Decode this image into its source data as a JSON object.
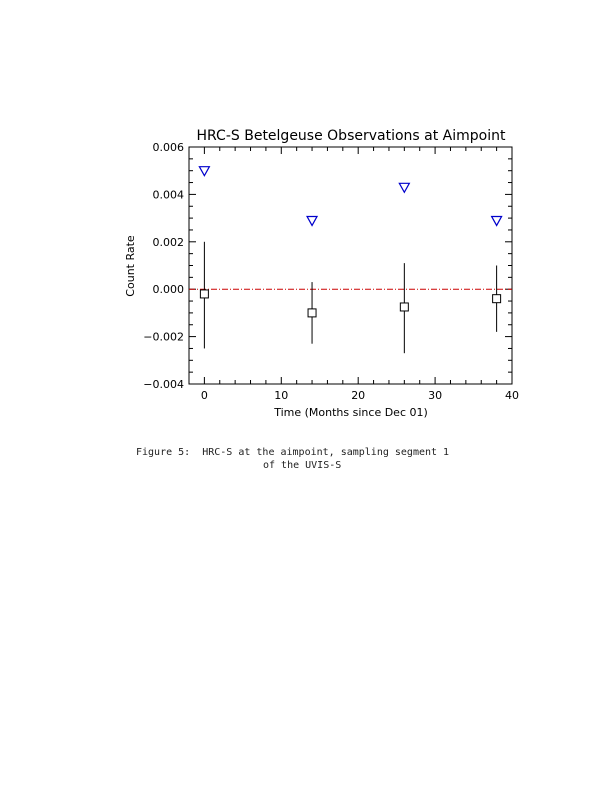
{
  "chart_data": {
    "type": "scatter",
    "title": "HRC-S Betelgeuse Observations at Aimpoint",
    "xlabel": "Time (Months since Dec 01)",
    "ylabel": "Count Rate",
    "xlim": [
      -2,
      40
    ],
    "ylim": [
      -0.004,
      0.006
    ],
    "x_ticks": [
      "0",
      "10",
      "20",
      "30",
      "40"
    ],
    "y_ticks": [
      "−0.004",
      "−0.002",
      "0.000",
      "0.002",
      "0.004",
      "0.006"
    ],
    "grid": false,
    "reference_line": {
      "y": 0.0,
      "color": "#cc0000",
      "style": "dash-dot"
    },
    "series": [
      {
        "marker": "square",
        "color": "#000000",
        "points": [
          {
            "x": 0,
            "y": -0.0002,
            "ylow": -0.0025,
            "yhigh": 0.002
          },
          {
            "x": 14,
            "y": -0.001,
            "ylow": -0.0023,
            "yhigh": 0.0003
          },
          {
            "x": 26,
            "y": -0.00075,
            "ylow": -0.0027,
            "yhigh": 0.0011
          },
          {
            "x": 38,
            "y": -0.0004,
            "ylow": -0.0018,
            "yhigh": 0.001
          }
        ]
      },
      {
        "marker": "triangle-down",
        "color": "#0000cc",
        "points": [
          {
            "x": 0,
            "y": 0.005
          },
          {
            "x": 14,
            "y": 0.0029
          },
          {
            "x": 26,
            "y": 0.0043
          },
          {
            "x": 38,
            "y": 0.0029
          }
        ]
      }
    ]
  },
  "caption": {
    "line1": "Figure 5:  HRC-S at the aimpoint, sampling segment 1",
    "line2": "of the UVIS-S"
  }
}
